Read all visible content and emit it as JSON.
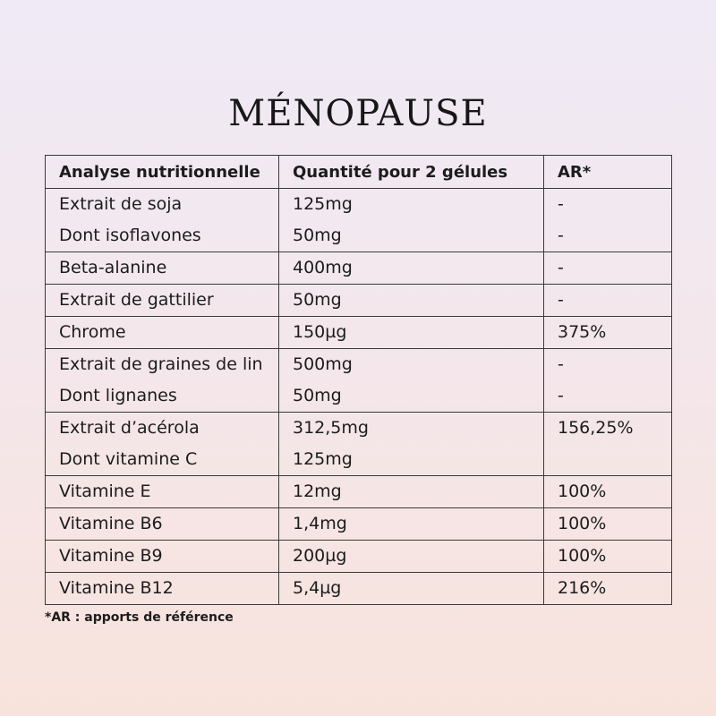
{
  "title": "MÉNOPAUSE",
  "table": {
    "headers": [
      "Analyse nutritionnelle",
      "Quantité pour 2 gélules",
      "AR*"
    ],
    "rows": [
      {
        "name": "Extrait de soja",
        "qty": "125mg",
        "ar": "-"
      },
      {
        "name": "Dont isoflavones",
        "qty": "50mg",
        "ar": "-"
      },
      {
        "name": "Beta-alanine",
        "qty": "400mg",
        "ar": "-"
      },
      {
        "name": "Extrait de gattilier",
        "qty": "50mg",
        "ar": "-"
      },
      {
        "name": "Chrome",
        "qty": "150µg",
        "ar": "375%"
      },
      {
        "name": "Extrait de graines de lin",
        "qty": "500mg",
        "ar": "-"
      },
      {
        "name": "Dont lignanes",
        "qty": "50mg",
        "ar": "-"
      },
      {
        "name": "Extrait d’acérola",
        "qty": "312,5mg",
        "ar": "156,25%"
      },
      {
        "name": "Dont vitamine C",
        "qty": "125mg",
        "ar": ""
      },
      {
        "name": "Vitamine E",
        "qty": "12mg",
        "ar": "100%"
      },
      {
        "name": "Vitamine B6",
        "qty": "1,4mg",
        "ar": "100%"
      },
      {
        "name": "Vitamine B9",
        "qty": "200µg",
        "ar": "100%"
      },
      {
        "name": "Vitamine B12",
        "qty": "5,4µg",
        "ar": "216%"
      }
    ]
  },
  "footnote": "*AR : apports de référence"
}
